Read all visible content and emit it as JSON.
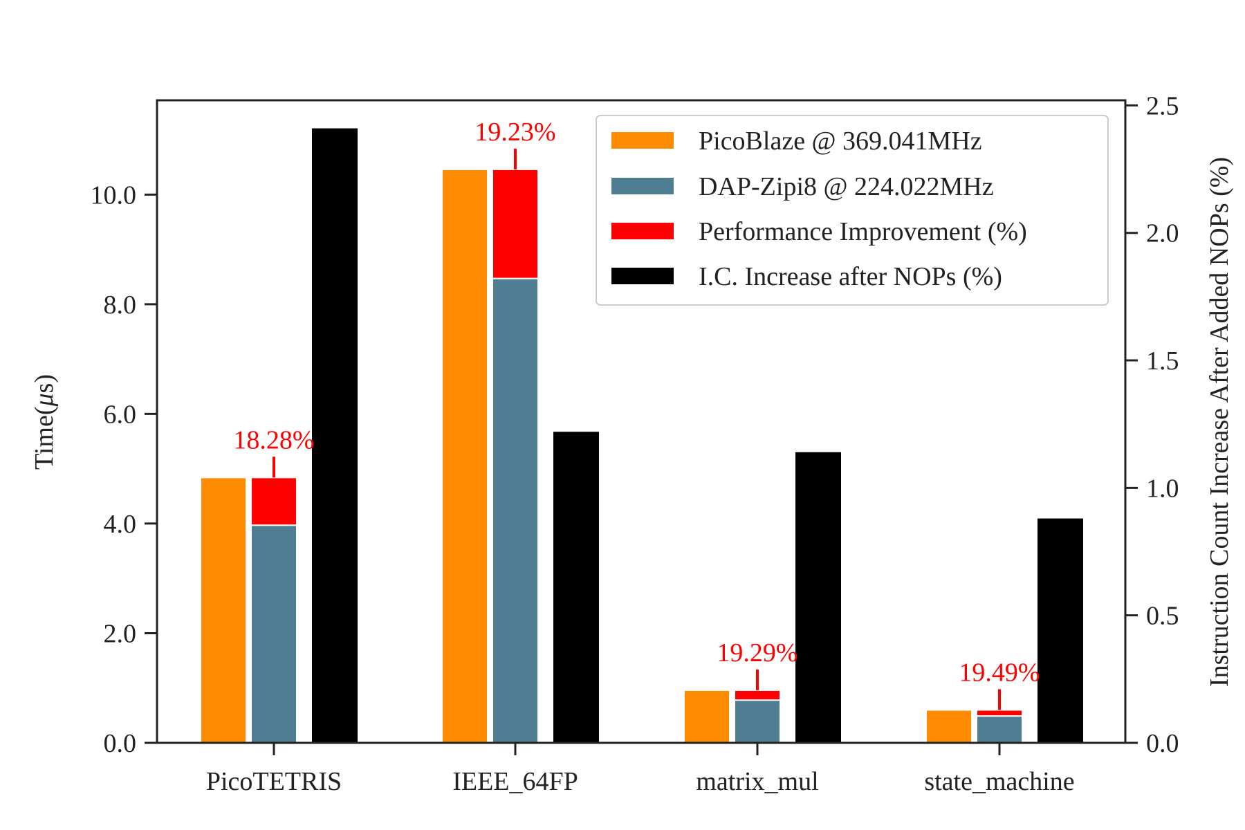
{
  "chart_data": {
    "type": "bar",
    "categories": [
      "PicoTETRIS",
      "IEEE_64FP",
      "matrix_mul",
      "state_machine"
    ],
    "left_axis": {
      "label": "Time(μs)",
      "label_prefix": "Time(",
      "label_mu": "μ",
      "label_suffix": "s)",
      "ylim": [
        0,
        11.72
      ],
      "ticks": [
        "0.0",
        "2.0",
        "4.0",
        "6.0",
        "8.0",
        "10.0"
      ]
    },
    "right_axis": {
      "label": "Instruction Count Increase After Added NOPs (%)",
      "ylim": [
        0,
        2.52
      ],
      "ticks": [
        "0.0",
        "0.5",
        "1.0",
        "1.5",
        "2.0",
        "2.5"
      ]
    },
    "series": [
      {
        "name": "PicoBlaze @ 369.041MHz",
        "axis": "left",
        "color": "#ff8c00",
        "values": [
          4.84,
          10.46,
          0.96,
          0.6
        ]
      },
      {
        "name": "DAP-Zipi8 @ 224.022MHz",
        "axis": "left",
        "color": "#4f7d91",
        "values": [
          3.97,
          8.47,
          0.78,
          0.49
        ]
      },
      {
        "name": "Performance Improvement (%)",
        "axis": "left",
        "color": "#ff0000",
        "stacked_on": "DAP-Zipi8 @ 224.022MHz",
        "values": [
          0.87,
          1.99,
          0.18,
          0.11
        ],
        "labels": [
          "18.28%",
          "19.23%",
          "19.29%",
          "19.49%"
        ]
      },
      {
        "name": "I.C. Increase after NOPs (%)",
        "axis": "right",
        "color": "#000000",
        "values": [
          2.41,
          1.22,
          1.14,
          0.88
        ]
      }
    ],
    "legend": {
      "placement": "top-right"
    },
    "grid": false
  }
}
